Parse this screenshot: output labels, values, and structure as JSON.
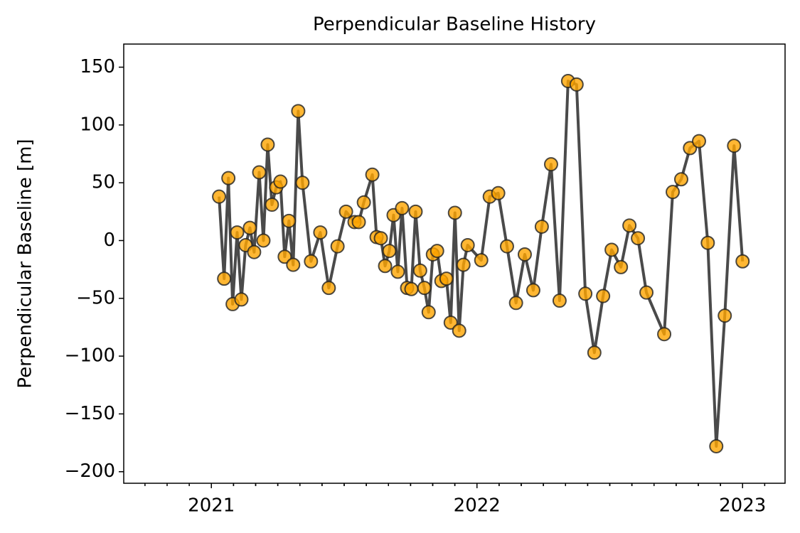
{
  "chart_data": {
    "type": "line",
    "title": "Perpendicular Baseline History",
    "ylabel": "Perpendicular Baseline [m]",
    "x": [
      2021.029,
      2021.048,
      2021.064,
      2021.08,
      2021.097,
      2021.113,
      2021.129,
      2021.145,
      2021.161,
      2021.18,
      2021.196,
      2021.212,
      2021.228,
      2021.244,
      2021.26,
      2021.276,
      2021.292,
      2021.308,
      2021.327,
      2021.343,
      2021.375,
      2021.41,
      2021.442,
      2021.475,
      2021.507,
      2021.539,
      2021.555,
      2021.574,
      2021.606,
      2021.622,
      2021.638,
      2021.654,
      2021.67,
      2021.686,
      2021.702,
      2021.718,
      2021.737,
      2021.753,
      2021.769,
      2021.786,
      2021.802,
      2021.818,
      2021.834,
      2021.85,
      2021.866,
      2021.885,
      2021.901,
      2021.917,
      2021.933,
      2021.949,
      2021.965,
      2022.016,
      2022.048,
      2022.08,
      2022.113,
      2022.147,
      2022.18,
      2022.212,
      2022.244,
      2022.279,
      2022.311,
      2022.343,
      2022.375,
      2022.408,
      2022.442,
      2022.475,
      2022.507,
      2022.542,
      2022.574,
      2022.606,
      2022.638,
      2022.705,
      2022.737,
      2022.769,
      2022.802,
      2022.836,
      2022.869,
      2022.901,
      2022.933,
      2022.968,
      2023.0
    ],
    "series": [
      {
        "name": "Perpendicular Baseline",
        "color": "#ffa500",
        "line_color": "#404040",
        "values": [
          38,
          -33,
          54,
          -55,
          7,
          -51,
          -4,
          11,
          -10,
          59,
          0,
          83,
          31,
          46,
          51,
          -14,
          17,
          -21,
          112,
          50,
          -18,
          7,
          -41,
          -5,
          25,
          16,
          16,
          33,
          57,
          3,
          2,
          -22,
          -9,
          22,
          -27,
          28,
          -41,
          -42,
          25,
          -26,
          -41,
          -62,
          -12,
          -9,
          -35,
          -33,
          -71,
          24,
          -78,
          -21,
          -4,
          -17,
          38,
          41,
          -5,
          -54,
          -12,
          -43,
          12,
          66,
          -52,
          138,
          135,
          -46,
          -97,
          -48,
          -8,
          -23,
          13,
          2,
          -45,
          -81,
          42,
          53,
          80,
          86,
          -2,
          -178,
          -65,
          82,
          -18
        ]
      }
    ],
    "xlim": [
      2020.67,
      2023.16
    ],
    "xticks": [
      2021,
      2022,
      2023
    ],
    "ylim": [
      -210,
      170
    ],
    "yticks": [
      {
        "value": -200,
        "label": "−200"
      },
      {
        "value": -150,
        "label": "−150"
      },
      {
        "value": -100,
        "label": "−100"
      },
      {
        "value": -50,
        "label": "−50"
      },
      0,
      50,
      100,
      150
    ]
  }
}
